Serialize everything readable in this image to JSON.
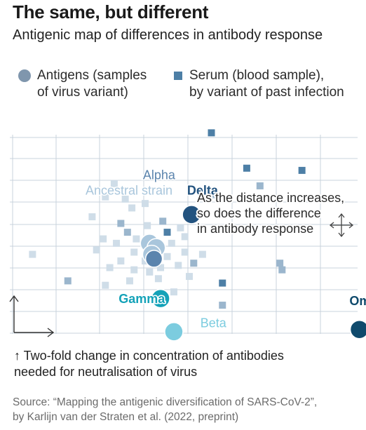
{
  "title": "The same, but different",
  "subtitle": "Antigenic map of differences in antibody response",
  "legend": {
    "antigens": {
      "label": "Antigens (samples\nof virus variant)",
      "icon": "circle",
      "color": "#7f96ad"
    },
    "serum": {
      "label": "Serum (blood sample),\nby variant of past infection",
      "icon": "square",
      "color": "#4d7fa6"
    }
  },
  "note": "↑ Two-fold change in concentration of antibodies\nneeded for neutralisation of virus",
  "source": "Source: “Mapping the antigenic diversification of SARS-CoV-2”,\nby Karlijn van der Straten et al. (2022, preprint)",
  "chart_data": {
    "type": "scatter",
    "title": "The same, but different",
    "subtitle": "Antigenic map of differences in antibody response",
    "grid": true,
    "xlim": [
      0,
      16
    ],
    "ylim": [
      0,
      9
    ],
    "scale_note": "one grid square = two-fold change in antibody concentration",
    "annotation": "As the distance increases,\nso does the difference\nin antibody response",
    "colors": {
      "grid": "#c9d3dc",
      "ancestral": "#a9c6dc",
      "alpha": "#5b84ad",
      "delta": "#23537f",
      "gamma": "#14a2b8",
      "beta": "#7cccdf",
      "omicron": "#0f4a6c",
      "serum_light": "#cfdde8",
      "serum_mid": "#9bb6cd",
      "serum_dark": "#4d7fa6"
    },
    "antigens": [
      {
        "label": "",
        "variant": "ancestral",
        "x": 6.2,
        "y": 4.1
      },
      {
        "label": "",
        "variant": "ancestral",
        "x": 6.5,
        "y": 3.9
      },
      {
        "label": "",
        "variant": "ancestral",
        "x": 6.3,
        "y": 3.6
      },
      {
        "label": "",
        "variant": "alpha",
        "x": 6.4,
        "y": 3.4
      },
      {
        "label": "Delta",
        "variant": "delta",
        "x": 8.1,
        "y": 5.4
      },
      {
        "label": "Gamma",
        "variant": "gamma",
        "x": 6.7,
        "y": 1.6
      },
      {
        "label": "Beta",
        "variant": "beta",
        "x": 7.3,
        "y": 0.1
      },
      {
        "label": "Omicron",
        "variant": "omicron",
        "x": 15.7,
        "y": 0.2
      }
    ],
    "variant_labels": [
      {
        "text": "Alpha",
        "variant": "alpha",
        "x": 5.9,
        "y": 7.0
      },
      {
        "text": "Ancestral strain",
        "variant": "ancestral",
        "x": 3.3,
        "y": 6.3
      },
      {
        "text": "Delta",
        "variant": "delta",
        "x": 7.9,
        "y": 6.3
      },
      {
        "text": "Gamma",
        "variant": "gamma",
        "x": 4.8,
        "y": 1.4
      },
      {
        "text": "Beta",
        "variant": "beta",
        "x": 8.5,
        "y": 0.3
      },
      {
        "text": "Omicron",
        "variant": "omicron",
        "x": 17.6,
        "y": 1.3
      }
    ],
    "sera": [
      {
        "x": 9.0,
        "y": 9.1,
        "shade": "serum_dark"
      },
      {
        "x": 10.6,
        "y": 7.5,
        "shade": "serum_dark"
      },
      {
        "x": 13.1,
        "y": 7.4,
        "shade": "serum_dark"
      },
      {
        "x": 11.2,
        "y": 6.7,
        "shade": "serum_mid"
      },
      {
        "x": 9.2,
        "y": 6.3,
        "shade": "serum_mid"
      },
      {
        "x": 4.6,
        "y": 6.8,
        "shade": "serum_light"
      },
      {
        "x": 4.2,
        "y": 6.2,
        "shade": "serum_light"
      },
      {
        "x": 5.1,
        "y": 6.1,
        "shade": "serum_light"
      },
      {
        "x": 6.0,
        "y": 5.9,
        "shade": "serum_light"
      },
      {
        "x": 5.4,
        "y": 5.7,
        "shade": "serum_light"
      },
      {
        "x": 3.6,
        "y": 5.3,
        "shade": "serum_light"
      },
      {
        "x": 4.9,
        "y": 5.0,
        "shade": "serum_mid"
      },
      {
        "x": 5.2,
        "y": 4.6,
        "shade": "serum_mid"
      },
      {
        "x": 6.1,
        "y": 4.9,
        "shade": "serum_light"
      },
      {
        "x": 6.8,
        "y": 5.1,
        "shade": "serum_mid"
      },
      {
        "x": 7.0,
        "y": 4.6,
        "shade": "serum_dark"
      },
      {
        "x": 7.6,
        "y": 4.8,
        "shade": "serum_light"
      },
      {
        "x": 7.8,
        "y": 4.4,
        "shade": "serum_light"
      },
      {
        "x": 7.2,
        "y": 4.1,
        "shade": "serum_light"
      },
      {
        "x": 5.6,
        "y": 4.3,
        "shade": "serum_light"
      },
      {
        "x": 4.7,
        "y": 4.1,
        "shade": "serum_light"
      },
      {
        "x": 4.1,
        "y": 4.3,
        "shade": "serum_light"
      },
      {
        "x": 3.8,
        "y": 3.8,
        "shade": "serum_light"
      },
      {
        "x": 5.5,
        "y": 3.7,
        "shade": "serum_light"
      },
      {
        "x": 6.0,
        "y": 3.3,
        "shade": "serum_light"
      },
      {
        "x": 7.0,
        "y": 3.5,
        "shade": "serum_light"
      },
      {
        "x": 7.8,
        "y": 3.7,
        "shade": "serum_light"
      },
      {
        "x": 7.5,
        "y": 3.1,
        "shade": "serum_light"
      },
      {
        "x": 8.2,
        "y": 3.2,
        "shade": "serum_mid"
      },
      {
        "x": 8.6,
        "y": 3.6,
        "shade": "serum_light"
      },
      {
        "x": 6.7,
        "y": 3.0,
        "shade": "serum_light"
      },
      {
        "x": 6.2,
        "y": 2.8,
        "shade": "serum_light"
      },
      {
        "x": 5.5,
        "y": 2.9,
        "shade": "serum_light"
      },
      {
        "x": 4.9,
        "y": 3.3,
        "shade": "serum_light"
      },
      {
        "x": 4.4,
        "y": 3.0,
        "shade": "serum_light"
      },
      {
        "x": 5.3,
        "y": 2.4,
        "shade": "serum_light"
      },
      {
        "x": 6.6,
        "y": 2.5,
        "shade": "serum_light"
      },
      {
        "x": 8.0,
        "y": 2.6,
        "shade": "serum_light"
      },
      {
        "x": 4.2,
        "y": 2.2,
        "shade": "serum_light"
      },
      {
        "x": 2.5,
        "y": 2.4,
        "shade": "serum_mid"
      },
      {
        "x": 0.9,
        "y": 3.6,
        "shade": "serum_light"
      },
      {
        "x": 12.1,
        "y": 3.2,
        "shade": "serum_mid"
      },
      {
        "x": 12.2,
        "y": 2.9,
        "shade": "serum_mid"
      },
      {
        "x": 9.5,
        "y": 2.3,
        "shade": "serum_dark"
      },
      {
        "x": 9.5,
        "y": 1.3,
        "shade": "serum_mid"
      },
      {
        "x": 7.3,
        "y": 1.9,
        "shade": "serum_light"
      }
    ]
  }
}
